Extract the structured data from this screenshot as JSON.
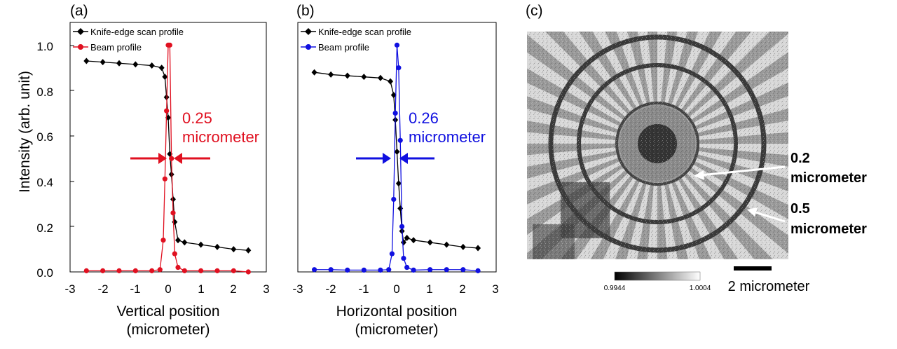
{
  "panels": [
    {
      "id": "a",
      "label": "(a)",
      "x_title_line1": "Vertical position",
      "x_title_line2": "(micrometer)",
      "annotation_value": "0.25",
      "annotation_unit": "micrometer",
      "annotation_color": "#e01020",
      "beam_color": "#e01020"
    },
    {
      "id": "b",
      "label": "(b)",
      "x_title_line1": "Horizontal position",
      "x_title_line2": "(micrometer)",
      "annotation_value": "0.26",
      "annotation_unit": "micrometer",
      "annotation_color": "#1010e0",
      "beam_color": "#1010e0"
    }
  ],
  "y_title": "Intensity (arb. unit)",
  "legend": {
    "knife": "Knife-edge scan profile",
    "beam": "Beam profile"
  },
  "image_panel": {
    "label": "(c)",
    "colorbar_min": "0.9944",
    "colorbar_max": "1.0004",
    "scalebar_label": "2 micrometer",
    "arrow1_value": "0.2",
    "arrow1_unit": "micrometer",
    "arrow2_value": "0.5",
    "arrow2_unit": "micrometer"
  },
  "chart_data": [
    {
      "type": "line",
      "title": "",
      "xlabel": "Vertical position (micrometer)",
      "ylabel": "Intensity (arb. unit)",
      "xlim": [
        -3,
        3
      ],
      "ylim": [
        0,
        1.1
      ],
      "xticks": [
        "-3",
        "-2",
        "-1",
        "0",
        "1",
        "2",
        "3"
      ],
      "yticks": [
        "0.0",
        "0.2",
        "0.4",
        "0.6",
        "0.8",
        "1.0"
      ],
      "series": [
        {
          "name": "Knife-edge scan profile",
          "color": "#000000",
          "marker": "diamond",
          "x": [
            -2.5,
            -2.0,
            -1.5,
            -1.0,
            -0.5,
            -0.2,
            -0.1,
            -0.05,
            0.0,
            0.05,
            0.1,
            0.15,
            0.2,
            0.3,
            0.5,
            1.0,
            1.5,
            2.0,
            2.45
          ],
          "y": [
            0.93,
            0.925,
            0.92,
            0.915,
            0.91,
            0.9,
            0.86,
            0.77,
            0.68,
            0.52,
            0.43,
            0.32,
            0.22,
            0.14,
            0.13,
            0.12,
            0.11,
            0.1,
            0.095
          ]
        },
        {
          "name": "Beam profile",
          "color": "#e01020",
          "marker": "circle",
          "x": [
            -2.5,
            -2.0,
            -1.5,
            -1.0,
            -0.5,
            -0.25,
            -0.15,
            -0.1,
            -0.05,
            0.0,
            0.05,
            0.1,
            0.15,
            0.2,
            0.3,
            0.5,
            1.0,
            1.5,
            2.0,
            2.45
          ],
          "y": [
            0.005,
            0.005,
            0.005,
            0.005,
            0.005,
            0.01,
            0.14,
            0.41,
            0.71,
            1.0,
            1.0,
            0.5,
            0.26,
            0.08,
            0.02,
            0.005,
            0.005,
            0.005,
            0.005,
            0.0
          ]
        }
      ],
      "annotations": [
        "0.25",
        "micrometer"
      ]
    },
    {
      "type": "line",
      "title": "",
      "xlabel": "Horizontal position (micrometer)",
      "ylabel": "",
      "xlim": [
        -3,
        3
      ],
      "ylim": [
        0,
        1.1
      ],
      "xticks": [
        "-3",
        "-2",
        "-1",
        "0",
        "1",
        "2",
        "3"
      ],
      "series": [
        {
          "name": "Knife-edge scan profile",
          "color": "#000000",
          "marker": "diamond",
          "x": [
            -2.5,
            -2.0,
            -1.5,
            -1.0,
            -0.5,
            -0.2,
            -0.1,
            -0.05,
            0.0,
            0.05,
            0.1,
            0.15,
            0.2,
            0.3,
            0.5,
            1.0,
            1.5,
            2.0,
            2.45
          ],
          "y": [
            0.88,
            0.87,
            0.865,
            0.86,
            0.855,
            0.84,
            0.78,
            0.67,
            0.53,
            0.39,
            0.28,
            0.18,
            0.13,
            0.15,
            0.14,
            0.13,
            0.12,
            0.11,
            0.105
          ]
        },
        {
          "name": "Beam profile",
          "color": "#1010e0",
          "marker": "circle",
          "x": [
            -2.5,
            -2.0,
            -1.5,
            -1.0,
            -0.5,
            -0.25,
            -0.15,
            -0.1,
            -0.05,
            0.0,
            0.05,
            0.1,
            0.15,
            0.2,
            0.3,
            0.5,
            1.0,
            1.5,
            2.0,
            2.45
          ],
          "y": [
            0.01,
            0.01,
            0.008,
            0.008,
            0.008,
            0.01,
            0.08,
            0.32,
            0.7,
            1.0,
            0.9,
            0.58,
            0.2,
            0.06,
            0.02,
            0.008,
            0.01,
            0.01,
            0.01,
            0.005
          ]
        }
      ],
      "annotations": [
        "0.26",
        "micrometer"
      ]
    }
  ]
}
